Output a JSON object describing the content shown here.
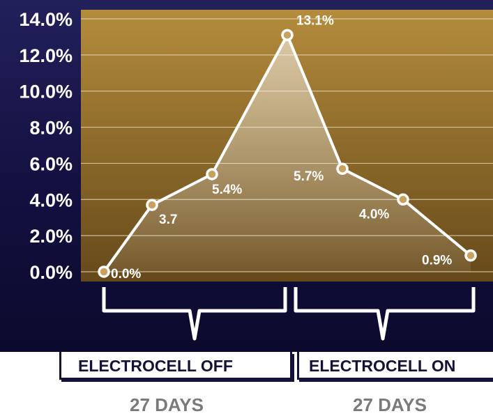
{
  "chart_data": {
    "type": "line",
    "title": "",
    "xlabel": "",
    "ylabel": "",
    "ylim": [
      0,
      14
    ],
    "yticks": [
      "14.0%",
      "12.0%",
      "10.0%",
      "8.0%",
      "6.0%",
      "4.0%",
      "2.0%",
      "0.0%"
    ],
    "grid": true,
    "series": [
      {
        "values": [
          0.0,
          3.7,
          5.4,
          13.1,
          5.7,
          4.0,
          0.9
        ],
        "labels": [
          "0.0%",
          "3.7",
          "5.4%",
          "13.1%",
          "5.7%",
          "4.0%",
          "0.9%"
        ]
      }
    ],
    "groups": [
      {
        "label": "ELECTROCELL OFF",
        "duration": "27 DAYS"
      },
      {
        "label": "ELECTROCELL ON",
        "duration": "27 DAYS"
      }
    ]
  },
  "colors": {
    "background": "#16134a",
    "plot_top": "#b08a3a",
    "plot_bottom": "#6a4e1c",
    "line": "#ffffff",
    "label_gray": "#7a7a7a"
  }
}
